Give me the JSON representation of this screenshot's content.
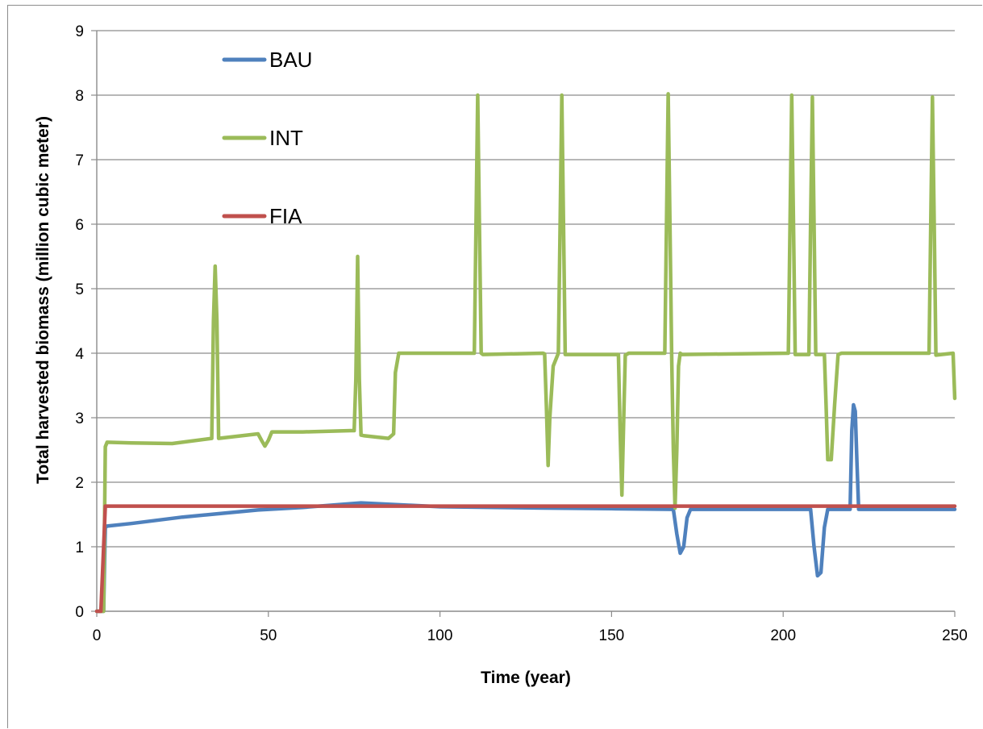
{
  "chart_data": {
    "type": "line",
    "title": "",
    "xlabel": "Time (year)",
    "ylabel": "Total harvested biomass (million cubic meter)",
    "xlim": [
      0,
      250
    ],
    "ylim": [
      0,
      9
    ],
    "xticks": [
      0,
      50,
      100,
      150,
      200,
      250
    ],
    "yticks": [
      0,
      1,
      2,
      3,
      4,
      5,
      6,
      7,
      8,
      9
    ],
    "grid": "horizontal",
    "legend": "upper-left",
    "series": [
      {
        "name": "BAU",
        "color": "#4f81bd",
        "x": [
          0,
          2,
          2.5,
          3,
          10,
          25,
          47,
          60,
          77,
          100,
          130,
          150,
          168,
          169,
          170,
          171,
          172,
          173,
          208,
          209,
          210,
          211,
          212,
          213,
          219.5,
          220,
          220.5,
          221,
          221.5,
          222,
          222.5,
          250
        ],
        "y": [
          0,
          0,
          1.3,
          1.32,
          1.36,
          1.46,
          1.57,
          1.61,
          1.68,
          1.62,
          1.6,
          1.59,
          1.58,
          1.2,
          0.9,
          1.0,
          1.45,
          1.58,
          1.58,
          1.0,
          0.55,
          0.6,
          1.3,
          1.58,
          1.58,
          2.8,
          3.2,
          3.1,
          2.3,
          1.58,
          1.58,
          1.58
        ]
      },
      {
        "name": "INT",
        "color": "#9bbb59",
        "x": [
          0,
          2,
          2.5,
          3,
          10,
          22,
          33.5,
          34,
          34.5,
          35,
          35.5,
          47,
          48,
          49,
          50,
          51,
          60,
          74,
          75,
          75.5,
          76,
          76.5,
          77,
          78,
          85,
          86.5,
          87,
          88,
          110,
          110.5,
          111,
          111.5,
          112,
          112.5,
          130,
          130.5,
          131,
          131.5,
          132,
          133,
          134.5,
          135,
          135.5,
          136,
          136.5,
          152,
          152.5,
          153,
          153.5,
          154,
          155,
          165.5,
          166,
          166.5,
          167,
          167.5,
          168,
          168.5,
          169,
          169.5,
          170,
          170.5,
          201.5,
          202,
          202.5,
          203,
          203.5,
          207.5,
          208,
          208.5,
          209,
          209.5,
          212,
          212.5,
          213,
          214,
          215,
          216,
          217,
          242.5,
          243,
          243.5,
          244,
          244.5,
          249.5,
          250
        ],
        "y": [
          0,
          0,
          2.55,
          2.62,
          2.61,
          2.6,
          2.68,
          4.5,
          5.35,
          4.5,
          2.68,
          2.75,
          2.65,
          2.56,
          2.65,
          2.78,
          2.78,
          2.8,
          2.8,
          3.6,
          5.5,
          3.6,
          2.73,
          2.72,
          2.68,
          2.75,
          3.7,
          4.0,
          4.0,
          6.0,
          8.0,
          6.0,
          4.0,
          3.98,
          4.0,
          3.99,
          3.2,
          2.26,
          3.0,
          3.8,
          4.0,
          6.0,
          8.0,
          6.0,
          3.98,
          3.98,
          2.8,
          1.8,
          2.9,
          3.97,
          4.0,
          4.0,
          6.0,
          8.02,
          6.0,
          3.99,
          2.5,
          1.6,
          2.5,
          3.8,
          4.0,
          3.98,
          4.0,
          6.0,
          8.0,
          6.0,
          3.98,
          3.98,
          6.0,
          7.97,
          6.0,
          3.98,
          3.98,
          3.2,
          2.35,
          2.35,
          3.2,
          3.98,
          4.0,
          4.0,
          6.0,
          7.97,
          6.0,
          3.97,
          4.0,
          3.3
        ]
      },
      {
        "name": "FIA",
        "color": "#c0504d",
        "x": [
          0,
          1.2,
          2,
          2.5,
          250
        ],
        "y": [
          0,
          0,
          1.0,
          1.63,
          1.63
        ]
      }
    ]
  }
}
